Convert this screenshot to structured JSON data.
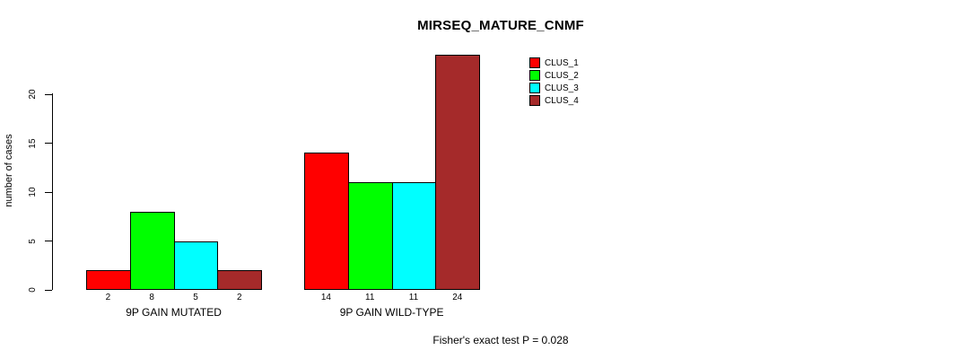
{
  "chart_data": {
    "type": "bar",
    "title": "MIRSEQ_MATURE_CNMF",
    "xlabel": "",
    "ylabel": "number of cases",
    "categories": [
      "9P GAIN MUTATED",
      "9P GAIN WILD-TYPE"
    ],
    "series": [
      {
        "name": "CLUS_1",
        "color": "#FF0000",
        "values": [
          2,
          14
        ]
      },
      {
        "name": "CLUS_2",
        "color": "#00FF00",
        "values": [
          8,
          11
        ]
      },
      {
        "name": "CLUS_3",
        "color": "#00FFFF",
        "values": [
          5,
          11
        ]
      },
      {
        "name": "CLUS_4",
        "color": "#A52A2A",
        "values": [
          2,
          24
        ]
      }
    ],
    "yticks": [
      0,
      5,
      10,
      15,
      20
    ],
    "ylim": [
      0,
      24
    ],
    "grid": false,
    "bar_value_labels": true,
    "legend_position": "top-right",
    "note": "Fisher's exact test P = 0.028"
  }
}
